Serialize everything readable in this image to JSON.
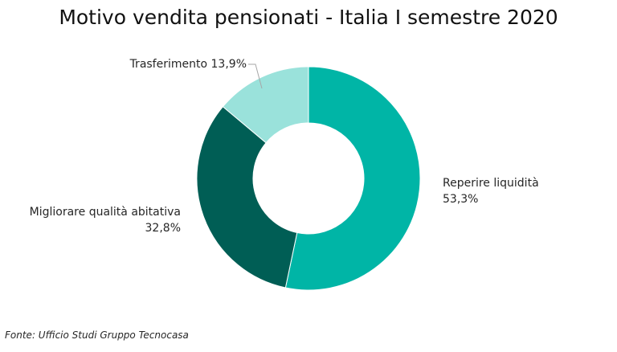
{
  "chart_data": {
    "type": "pie",
    "donut": true,
    "title": "Motivo vendita pensionati - Italia I semestre 2020",
    "slices": [
      {
        "label": "Reperire liquidità",
        "value_label": "53,3%",
        "value": 53.3,
        "color": "#00B5A6"
      },
      {
        "label": "Migliorare qualità abitativa",
        "value_label": "32,8%",
        "value": 32.8,
        "color": "#005E55"
      },
      {
        "label": "Trasferimento",
        "value_label": "13,9%",
        "value": 13.9,
        "color": "#9AE2DB"
      }
    ]
  },
  "source": "Fonte: Ufficio Studi Gruppo Tecnocasa"
}
